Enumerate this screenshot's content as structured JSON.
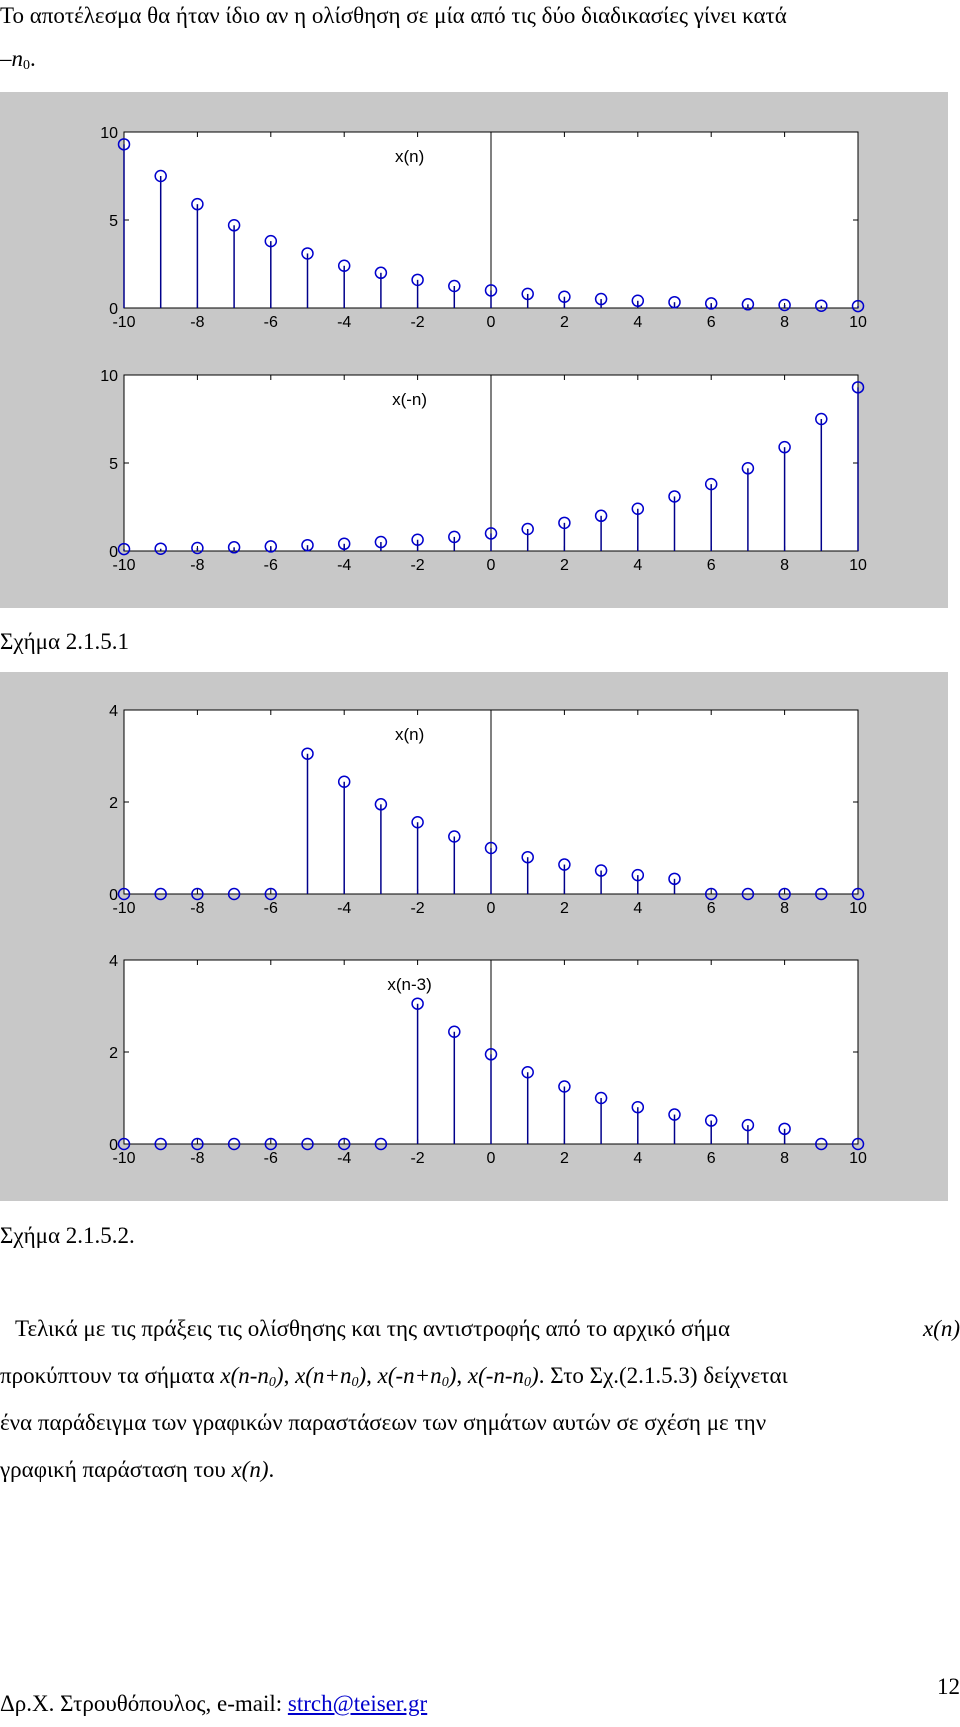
{
  "intro": {
    "line1": "Το αποτέλεσμα θα ήταν ίδιο αν η ολίσθηση σε μία από τις δύο διαδικασίες γίνει κατά",
    "line2_prefix": "–",
    "line2_var": "n",
    "line2_sub": "0",
    "line2_suffix": "."
  },
  "figure1": {
    "caption": "Σχήμα 2.1.5.1"
  },
  "figure2": {
    "caption": "Σχήμα 2.1.5.2."
  },
  "paragraph": {
    "l1_text": "Τελικά με τις πράξεις τις ολίσθησης και της αντιστροφής από το αρχικό σήμα",
    "l1_sig": "x(n)",
    "l2_prefix": "προκύπτουν τα σήματα",
    "sig1": "x(n-n",
    "sig2": "x(n+n",
    "sig3": "x(-n+n",
    "sig4": "x(-n-n",
    "sub0": "0",
    "close": ")",
    "sep": ",",
    "l2_suffix": ". Στο Σχ.(2.1.5.3) δείχνεται",
    "l3_text": "ένα παράδειγμα των γραφικών παραστάσεων των σημάτων αυτών σε σχέση με την",
    "l4_prefix": "γραφική παράσταση του",
    "l4_sig": "x(n)",
    "l4_suffix": "."
  },
  "footer": {
    "author": "Δρ.Χ. Στρουθόπουλος, e-mail:",
    "email": "strch@teiser.gr",
    "page_number": "12"
  },
  "colors": {
    "stem": "#00008b",
    "marker": "#0000cd",
    "figure_bg": "#c8c8c8"
  },
  "chart_data": [
    {
      "type": "stem",
      "title": "x(n)",
      "x": [
        -10,
        -9,
        -8,
        -7,
        -6,
        -5,
        -4,
        -3,
        -2,
        -1,
        0,
        1,
        2,
        3,
        4,
        5,
        6,
        7,
        8,
        9,
        10
      ],
      "values": [
        9.3,
        7.5,
        5.9,
        4.7,
        3.8,
        3.1,
        2.4,
        2.0,
        1.6,
        1.25,
        1.0,
        0.8,
        0.64,
        0.51,
        0.41,
        0.33,
        0.26,
        0.21,
        0.17,
        0.13,
        0.11
      ],
      "xlim": [
        -10,
        10
      ],
      "ylim": [
        0,
        10
      ],
      "xticks": [
        -10,
        -8,
        -6,
        -4,
        -2,
        0,
        2,
        4,
        6,
        8,
        10
      ],
      "yticks": [
        0,
        5,
        10
      ]
    },
    {
      "type": "stem",
      "title": "x(-n)",
      "x": [
        -10,
        -9,
        -8,
        -7,
        -6,
        -5,
        -4,
        -3,
        -2,
        -1,
        0,
        1,
        2,
        3,
        4,
        5,
        6,
        7,
        8,
        9,
        10
      ],
      "values": [
        0.11,
        0.13,
        0.17,
        0.21,
        0.26,
        0.33,
        0.41,
        0.51,
        0.64,
        0.8,
        1.0,
        1.25,
        1.6,
        2.0,
        2.4,
        3.1,
        3.8,
        4.7,
        5.9,
        7.5,
        9.3
      ],
      "xlim": [
        -10,
        10
      ],
      "ylim": [
        0,
        10
      ],
      "xticks": [
        -10,
        -8,
        -6,
        -4,
        -2,
        0,
        2,
        4,
        6,
        8,
        10
      ],
      "yticks": [
        0,
        5,
        10
      ]
    },
    {
      "type": "stem",
      "title": "x(n)",
      "x": [
        -10,
        -9,
        -8,
        -7,
        -6,
        -5,
        -4,
        -3,
        -2,
        -1,
        0,
        1,
        2,
        3,
        4,
        5,
        6,
        7,
        8,
        9,
        10
      ],
      "values": [
        0,
        0,
        0,
        0,
        0,
        3.05,
        2.44,
        1.95,
        1.56,
        1.25,
        1.0,
        0.8,
        0.64,
        0.51,
        0.41,
        0.33,
        0,
        0,
        0,
        0,
        0
      ],
      "xlim": [
        -10,
        10
      ],
      "ylim": [
        0,
        4
      ],
      "xticks": [
        -10,
        -8,
        -6,
        -4,
        -2,
        0,
        2,
        4,
        6,
        8,
        10
      ],
      "yticks": [
        0,
        2,
        4
      ]
    },
    {
      "type": "stem",
      "title": "x(n-3)",
      "x": [
        -10,
        -9,
        -8,
        -7,
        -6,
        -5,
        -4,
        -3,
        -2,
        -1,
        0,
        1,
        2,
        3,
        4,
        5,
        6,
        7,
        8,
        9,
        10
      ],
      "values": [
        0,
        0,
        0,
        0,
        0,
        0,
        0,
        0,
        3.05,
        2.44,
        1.95,
        1.56,
        1.25,
        1.0,
        0.8,
        0.64,
        0.51,
        0.41,
        0.33,
        0,
        0
      ],
      "xlim": [
        -10,
        10
      ],
      "ylim": [
        0,
        4
      ],
      "xticks": [
        -10,
        -8,
        -6,
        -4,
        -2,
        0,
        2,
        4,
        6,
        8,
        10
      ],
      "yticks": [
        0,
        2,
        4
      ]
    }
  ]
}
